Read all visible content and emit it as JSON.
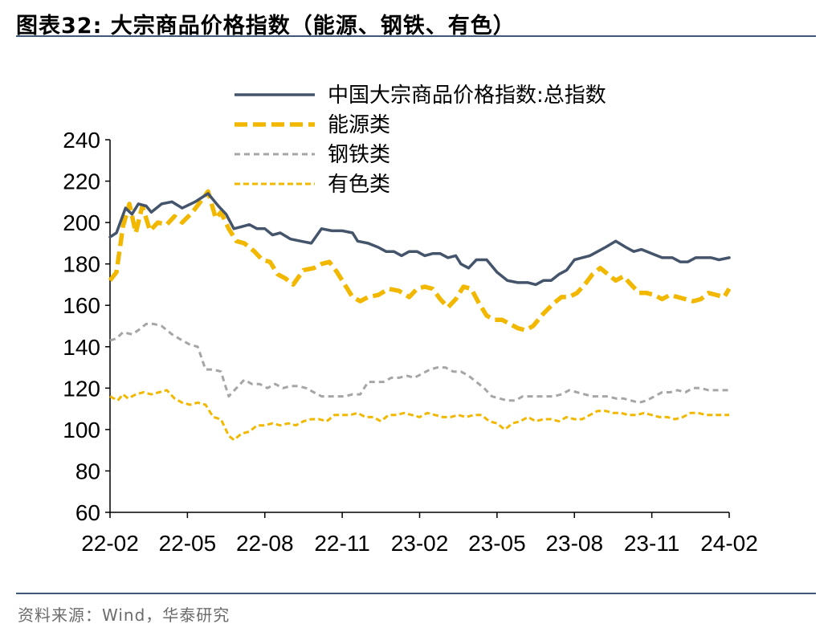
{
  "header": {
    "title": "图表32:  大宗商品价格指数（能源、钢铁、有色）"
  },
  "footer": {
    "source": "资料来源：Wind，华泰研究"
  },
  "chart_data": {
    "type": "line",
    "title": "大宗商品价格指数（能源、钢铁、有色）",
    "xlabel": "",
    "ylabel": "",
    "ylim": [
      60,
      240
    ],
    "yticks": [
      60,
      80,
      100,
      120,
      140,
      160,
      180,
      200,
      220,
      240
    ],
    "xlim": [
      0,
      24
    ],
    "xticks": [
      {
        "pos": 0,
        "label": "22-02"
      },
      {
        "pos": 3,
        "label": "22-05"
      },
      {
        "pos": 6,
        "label": "22-08"
      },
      {
        "pos": 9,
        "label": "22-11"
      },
      {
        "pos": 12,
        "label": "23-02"
      },
      {
        "pos": 15,
        "label": "23-05"
      },
      {
        "pos": 18,
        "label": "23-08"
      },
      {
        "pos": 21,
        "label": "23-11"
      },
      {
        "pos": 24,
        "label": "24-02"
      }
    ],
    "legend_position": "top",
    "series": [
      {
        "name": "中国大宗商品价格指数:总指数",
        "color": "#44546a",
        "style": "solid",
        "points": [
          [
            0,
            193
          ],
          [
            0.25,
            195
          ],
          [
            0.6,
            207
          ],
          [
            0.85,
            204
          ],
          [
            1.1,
            209
          ],
          [
            1.4,
            208
          ],
          [
            1.6,
            205
          ],
          [
            2.0,
            209
          ],
          [
            2.4,
            210
          ],
          [
            2.8,
            207
          ],
          [
            3.3,
            210
          ],
          [
            3.8,
            214
          ],
          [
            4.2,
            208
          ],
          [
            4.5,
            204
          ],
          [
            4.8,
            197
          ],
          [
            5.1,
            198
          ],
          [
            5.4,
            199
          ],
          [
            5.7,
            197
          ],
          [
            6.0,
            197
          ],
          [
            6.3,
            194
          ],
          [
            6.6,
            195
          ],
          [
            7.0,
            192
          ],
          [
            7.4,
            191
          ],
          [
            7.8,
            190
          ],
          [
            8.2,
            197
          ],
          [
            8.6,
            196
          ],
          [
            9.0,
            196
          ],
          [
            9.4,
            195
          ],
          [
            9.6,
            191
          ],
          [
            10.0,
            190
          ],
          [
            10.4,
            188
          ],
          [
            10.7,
            186
          ],
          [
            11.0,
            186
          ],
          [
            11.3,
            184
          ],
          [
            11.6,
            186
          ],
          [
            11.9,
            186
          ],
          [
            12.2,
            184
          ],
          [
            12.5,
            185
          ],
          [
            12.8,
            185
          ],
          [
            13.1,
            183
          ],
          [
            13.4,
            184
          ],
          [
            13.6,
            180
          ],
          [
            13.9,
            178
          ],
          [
            14.2,
            182
          ],
          [
            14.6,
            182
          ],
          [
            15.0,
            176
          ],
          [
            15.4,
            172
          ],
          [
            15.8,
            171
          ],
          [
            16.2,
            171
          ],
          [
            16.5,
            170
          ],
          [
            16.8,
            172
          ],
          [
            17.1,
            172
          ],
          [
            17.4,
            175
          ],
          [
            17.7,
            177
          ],
          [
            18.0,
            182
          ],
          [
            18.3,
            183
          ],
          [
            18.6,
            184
          ],
          [
            18.9,
            186
          ],
          [
            19.2,
            188
          ],
          [
            19.6,
            191
          ],
          [
            20.0,
            188
          ],
          [
            20.3,
            186
          ],
          [
            20.6,
            187
          ],
          [
            21.0,
            185
          ],
          [
            21.4,
            183
          ],
          [
            21.8,
            183
          ],
          [
            22.1,
            181
          ],
          [
            22.4,
            181
          ],
          [
            22.7,
            183
          ],
          [
            23.0,
            183
          ],
          [
            23.3,
            183
          ],
          [
            23.6,
            182
          ],
          [
            24.0,
            183
          ]
        ]
      },
      {
        "name": "能源类",
        "color": "#f2b800",
        "style": "long-dash",
        "points": [
          [
            0,
            172
          ],
          [
            0.25,
            176
          ],
          [
            0.5,
            198
          ],
          [
            0.75,
            209
          ],
          [
            1.0,
            195
          ],
          [
            1.25,
            208
          ],
          [
            1.55,
            196
          ],
          [
            1.85,
            200
          ],
          [
            2.2,
            199
          ],
          [
            2.5,
            203
          ],
          [
            2.8,
            200
          ],
          [
            3.2,
            205
          ],
          [
            3.8,
            215
          ],
          [
            4.1,
            202
          ],
          [
            4.3,
            205
          ],
          [
            4.6,
            197
          ],
          [
            4.9,
            191
          ],
          [
            5.2,
            190
          ],
          [
            5.6,
            186
          ],
          [
            5.9,
            182
          ],
          [
            6.2,
            181
          ],
          [
            6.5,
            175
          ],
          [
            6.8,
            173
          ],
          [
            7.1,
            170
          ],
          [
            7.5,
            177
          ],
          [
            7.9,
            178
          ],
          [
            8.2,
            180
          ],
          [
            8.5,
            181
          ],
          [
            8.8,
            176
          ],
          [
            9.1,
            170
          ],
          [
            9.4,
            164
          ],
          [
            9.7,
            162
          ],
          [
            10.0,
            164
          ],
          [
            10.4,
            165
          ],
          [
            10.8,
            168
          ],
          [
            11.2,
            167
          ],
          [
            11.6,
            164
          ],
          [
            11.9,
            168
          ],
          [
            12.2,
            169
          ],
          [
            12.5,
            168
          ],
          [
            12.8,
            163
          ],
          [
            13.1,
            159
          ],
          [
            13.4,
            163
          ],
          [
            13.7,
            169
          ],
          [
            14.0,
            168
          ],
          [
            14.3,
            161
          ],
          [
            14.6,
            155
          ],
          [
            14.9,
            153
          ],
          [
            15.2,
            153
          ],
          [
            15.5,
            151
          ],
          [
            15.8,
            149
          ],
          [
            16.1,
            148
          ],
          [
            16.4,
            150
          ],
          [
            16.8,
            156
          ],
          [
            17.2,
            161
          ],
          [
            17.5,
            164
          ],
          [
            17.8,
            164
          ],
          [
            18.1,
            166
          ],
          [
            18.4,
            170
          ],
          [
            18.7,
            175
          ],
          [
            19.0,
            178
          ],
          [
            19.3,
            175
          ],
          [
            19.6,
            172
          ],
          [
            19.9,
            174
          ],
          [
            20.2,
            170
          ],
          [
            20.5,
            166
          ],
          [
            20.8,
            166
          ],
          [
            21.1,
            165
          ],
          [
            21.4,
            163
          ],
          [
            21.7,
            165
          ],
          [
            22.0,
            164
          ],
          [
            22.3,
            163
          ],
          [
            22.6,
            162
          ],
          [
            22.9,
            163
          ],
          [
            23.2,
            166
          ],
          [
            23.5,
            165
          ],
          [
            23.8,
            164
          ],
          [
            24.0,
            168
          ]
        ]
      },
      {
        "name": "钢铁类",
        "color": "#a6a6a6",
        "style": "dash",
        "points": [
          [
            0,
            143
          ],
          [
            0.25,
            144
          ],
          [
            0.5,
            147
          ],
          [
            0.85,
            146
          ],
          [
            1.1,
            148
          ],
          [
            1.4,
            151
          ],
          [
            1.7,
            151
          ],
          [
            2.0,
            150
          ],
          [
            2.4,
            146
          ],
          [
            2.8,
            143
          ],
          [
            3.1,
            141
          ],
          [
            3.4,
            140
          ],
          [
            3.7,
            129
          ],
          [
            4.0,
            129
          ],
          [
            4.3,
            128
          ],
          [
            4.6,
            116
          ],
          [
            4.9,
            120
          ],
          [
            5.2,
            124
          ],
          [
            5.5,
            122
          ],
          [
            5.8,
            122
          ],
          [
            6.1,
            120
          ],
          [
            6.4,
            122
          ],
          [
            6.7,
            120
          ],
          [
            7.0,
            121
          ],
          [
            7.3,
            121
          ],
          [
            7.6,
            120
          ],
          [
            7.9,
            118
          ],
          [
            8.2,
            116
          ],
          [
            8.5,
            116
          ],
          [
            8.8,
            116
          ],
          [
            9.1,
            116
          ],
          [
            9.4,
            117
          ],
          [
            9.7,
            117
          ],
          [
            10.0,
            123
          ],
          [
            10.3,
            123
          ],
          [
            10.6,
            123
          ],
          [
            10.9,
            125
          ],
          [
            11.2,
            125
          ],
          [
            11.5,
            126
          ],
          [
            11.8,
            125
          ],
          [
            12.1,
            127
          ],
          [
            12.4,
            129
          ],
          [
            12.7,
            130
          ],
          [
            13.0,
            130
          ],
          [
            13.3,
            128
          ],
          [
            13.6,
            128
          ],
          [
            13.9,
            126
          ],
          [
            14.2,
            123
          ],
          [
            14.5,
            120
          ],
          [
            14.8,
            116
          ],
          [
            15.1,
            115
          ],
          [
            15.4,
            114
          ],
          [
            15.7,
            114
          ],
          [
            16.0,
            116
          ],
          [
            16.3,
            116
          ],
          [
            16.6,
            116
          ],
          [
            16.9,
            116
          ],
          [
            17.2,
            116
          ],
          [
            17.5,
            117
          ],
          [
            17.8,
            119
          ],
          [
            18.1,
            118
          ],
          [
            18.4,
            117
          ],
          [
            18.7,
            116
          ],
          [
            19.0,
            116
          ],
          [
            19.3,
            116
          ],
          [
            19.6,
            115
          ],
          [
            19.9,
            115
          ],
          [
            20.2,
            114
          ],
          [
            20.5,
            113
          ],
          [
            20.8,
            114
          ],
          [
            21.1,
            116
          ],
          [
            21.4,
            118
          ],
          [
            21.7,
            118
          ],
          [
            22.0,
            119
          ],
          [
            22.3,
            118
          ],
          [
            22.6,
            120
          ],
          [
            22.9,
            120
          ],
          [
            23.2,
            119
          ],
          [
            23.5,
            119
          ],
          [
            23.8,
            119
          ],
          [
            24.0,
            119
          ]
        ]
      },
      {
        "name": "有色类",
        "color": "#f2b800",
        "style": "short-dash",
        "points": [
          [
            0,
            116
          ],
          [
            0.3,
            114
          ],
          [
            0.5,
            117
          ],
          [
            0.7,
            115
          ],
          [
            1.0,
            117
          ],
          [
            1.3,
            118
          ],
          [
            1.6,
            117
          ],
          [
            1.9,
            118
          ],
          [
            2.2,
            119
          ],
          [
            2.5,
            115
          ],
          [
            2.8,
            113
          ],
          [
            3.1,
            112
          ],
          [
            3.4,
            113
          ],
          [
            3.7,
            112
          ],
          [
            4.0,
            106
          ],
          [
            4.3,
            105
          ],
          [
            4.6,
            97
          ],
          [
            4.8,
            95
          ],
          [
            5.1,
            98
          ],
          [
            5.4,
            99
          ],
          [
            5.7,
            102
          ],
          [
            6.0,
            102
          ],
          [
            6.3,
            103
          ],
          [
            6.6,
            102
          ],
          [
            6.9,
            103
          ],
          [
            7.2,
            102
          ],
          [
            7.5,
            104
          ],
          [
            7.8,
            105
          ],
          [
            8.1,
            105
          ],
          [
            8.4,
            104
          ],
          [
            8.7,
            107
          ],
          [
            9.0,
            107
          ],
          [
            9.3,
            107
          ],
          [
            9.6,
            108
          ],
          [
            9.9,
            106
          ],
          [
            10.2,
            106
          ],
          [
            10.5,
            104
          ],
          [
            10.8,
            107
          ],
          [
            11.1,
            107
          ],
          [
            11.4,
            108
          ],
          [
            11.7,
            107
          ],
          [
            12.0,
            106
          ],
          [
            12.3,
            108
          ],
          [
            12.6,
            107
          ],
          [
            12.9,
            106
          ],
          [
            13.2,
            106
          ],
          [
            13.5,
            107
          ],
          [
            13.8,
            106
          ],
          [
            14.1,
            107
          ],
          [
            14.4,
            107
          ],
          [
            14.7,
            104
          ],
          [
            15.0,
            103
          ],
          [
            15.3,
            100
          ],
          [
            15.6,
            103
          ],
          [
            15.9,
            104
          ],
          [
            16.2,
            106
          ],
          [
            16.5,
            104
          ],
          [
            16.8,
            105
          ],
          [
            17.1,
            105
          ],
          [
            17.4,
            104
          ],
          [
            17.7,
            106
          ],
          [
            18.0,
            105
          ],
          [
            18.3,
            105
          ],
          [
            18.6,
            107
          ],
          [
            18.9,
            109
          ],
          [
            19.2,
            109
          ],
          [
            19.5,
            108
          ],
          [
            19.8,
            108
          ],
          [
            20.1,
            107
          ],
          [
            20.4,
            107
          ],
          [
            20.7,
            108
          ],
          [
            21.0,
            107
          ],
          [
            21.3,
            106
          ],
          [
            21.6,
            106
          ],
          [
            21.9,
            105
          ],
          [
            22.2,
            106
          ],
          [
            22.5,
            108
          ],
          [
            22.8,
            108
          ],
          [
            23.1,
            107
          ],
          [
            23.4,
            107
          ],
          [
            23.7,
            107
          ],
          [
            24.0,
            107
          ]
        ]
      }
    ]
  }
}
